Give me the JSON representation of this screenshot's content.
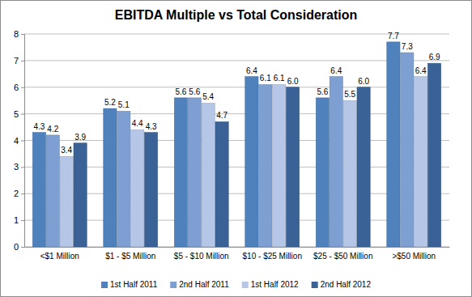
{
  "chart_data": {
    "type": "bar",
    "title": "EBITDA Multiple vs Total Consideration",
    "categories": [
      "<$1 Million",
      "$1 - $5 Million",
      "$5 - $10 Million",
      "$10 - $25 Million",
      "$25 - $50 Million",
      ">$50 Million"
    ],
    "series": [
      {
        "name": "1st Half 2011",
        "color": "#4f81bd",
        "values": [
          4.3,
          5.2,
          5.6,
          6.4,
          5.6,
          7.7
        ]
      },
      {
        "name": "2nd Half 2011",
        "color": "#7e9fd2",
        "values": [
          4.2,
          5.1,
          5.6,
          6.1,
          6.4,
          7.3
        ]
      },
      {
        "name": "1st Half 2012",
        "color": "#b6c6e6",
        "values": [
          3.4,
          4.4,
          5.4,
          6.1,
          5.5,
          6.4
        ]
      },
      {
        "name": "2nd Half 2012",
        "color": "#3a6296",
        "values": [
          3.9,
          4.3,
          4.7,
          6.0,
          6.0,
          6.9
        ],
        "value_labels": [
          "3.9",
          "4.3",
          "4.7",
          "6.0",
          "6.0",
          "6.9"
        ]
      }
    ],
    "ylim": [
      0,
      8
    ],
    "yticks": [
      0,
      1,
      2,
      3,
      4,
      5,
      6,
      7,
      8
    ],
    "grid": true,
    "data_labels": true,
    "legend": "bottom"
  }
}
